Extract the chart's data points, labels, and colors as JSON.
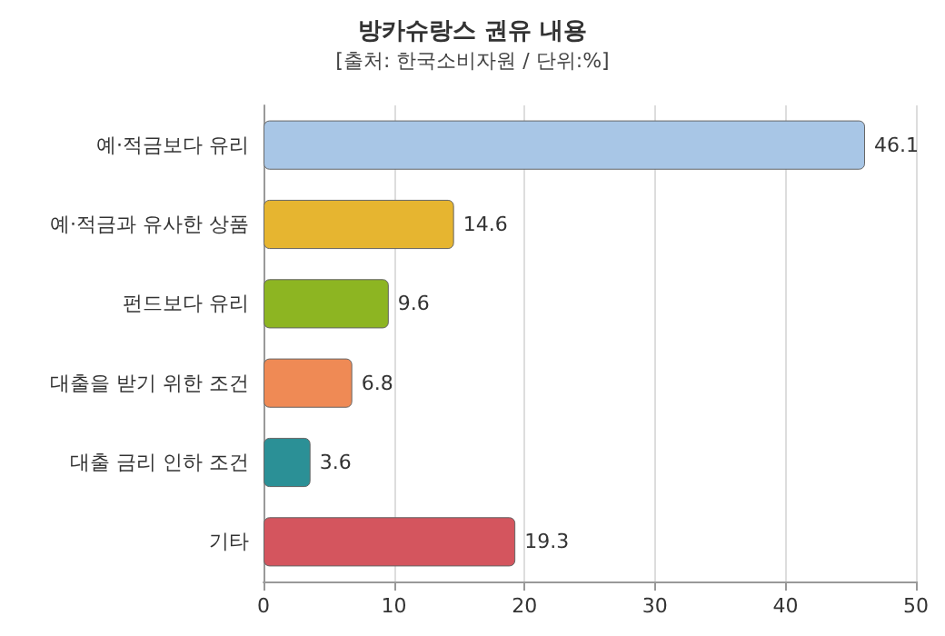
{
  "chart_data": {
    "type": "bar",
    "orientation": "horizontal",
    "title": "방카슈랑스 권유 내용",
    "subtitle": "[출처: 한국소비자원 / 단위:%]",
    "categories": [
      "예·적금보다 유리",
      "예·적금과 유사한 상품",
      "펀드보다 유리",
      "대출을 받기 위한 조건",
      "대출 금리 인하 조건",
      "기타"
    ],
    "values": [
      46.1,
      14.6,
      9.6,
      6.8,
      3.6,
      19.3
    ],
    "colors": [
      "#a8c6e6",
      "#e6b530",
      "#8db522",
      "#ef8a55",
      "#2b9096",
      "#d4555e"
    ],
    "xlim": [
      0,
      50
    ],
    "xticks": [
      0,
      10,
      20,
      30,
      40,
      50
    ],
    "grid": "x",
    "data_labels": true
  }
}
